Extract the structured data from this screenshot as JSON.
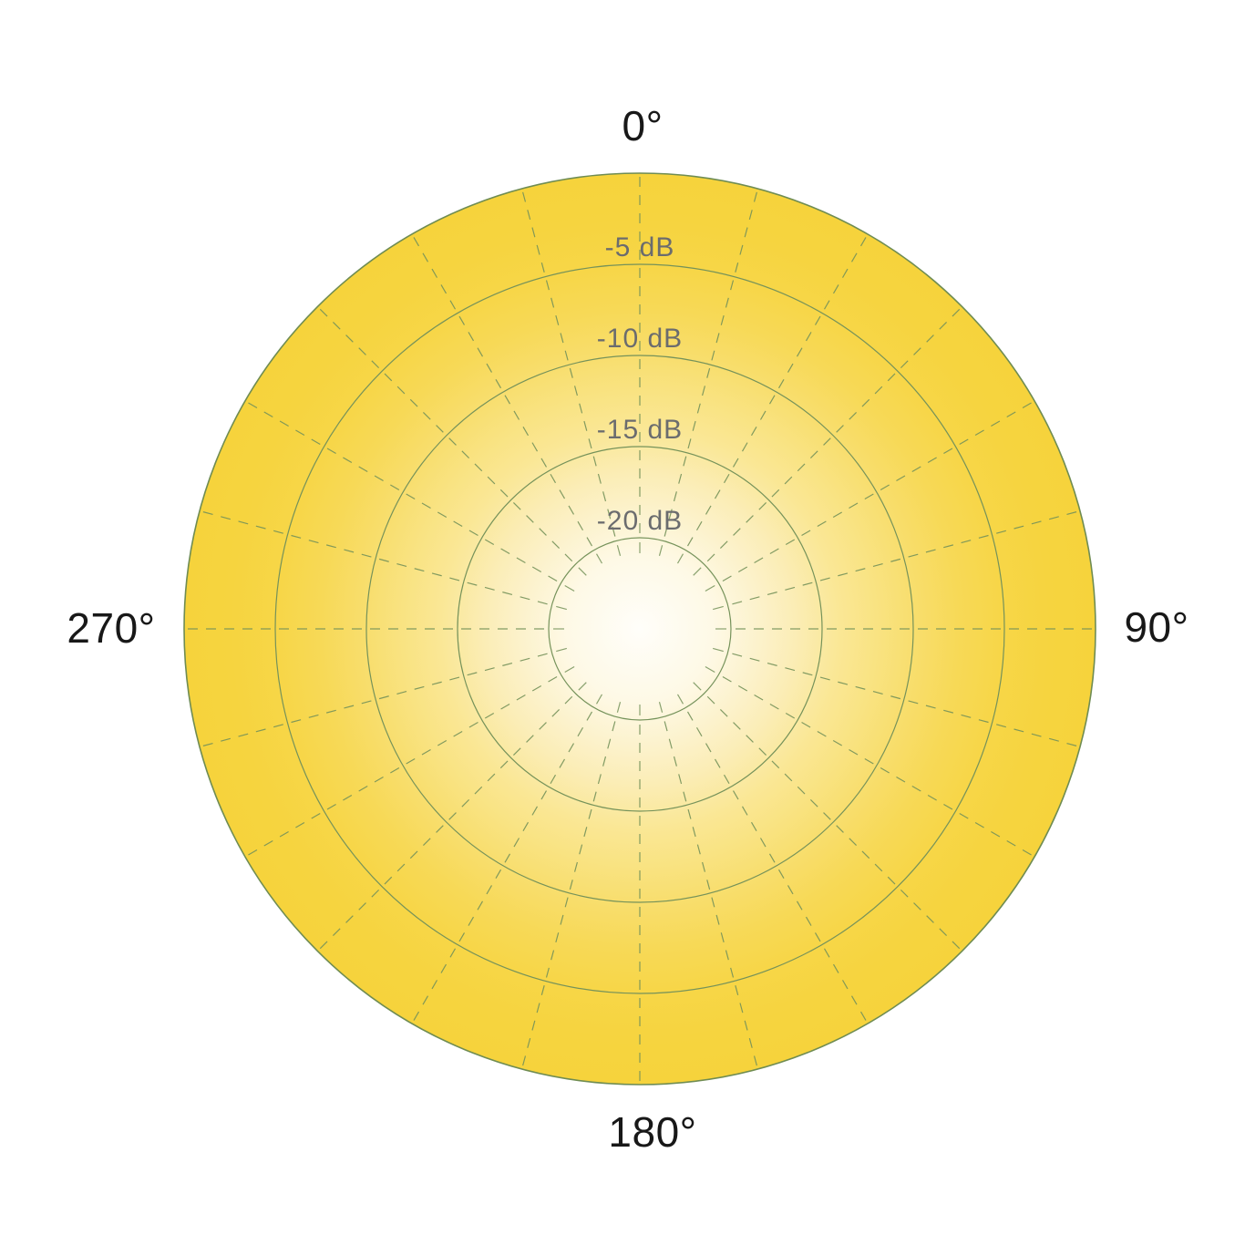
{
  "page": {
    "background": "#ffffff"
  },
  "chart_data": {
    "type": "polar",
    "subtype": "microphone-polar-pattern",
    "title": "",
    "pattern": {
      "name": "omnidirectional",
      "description": "uniform full-circle response filled to the outer radius at every angle"
    },
    "angle_unit": "degrees",
    "angle_step_deg": 15,
    "angle_labels": [
      {
        "angle_deg": 0,
        "text": "0°"
      },
      {
        "angle_deg": 90,
        "text": "90°"
      },
      {
        "angle_deg": 180,
        "text": "180°"
      },
      {
        "angle_deg": 270,
        "text": "270°"
      }
    ],
    "rings": [
      {
        "db": -5,
        "label": "-5 dB",
        "radius_fraction": 0.8
      },
      {
        "db": -10,
        "label": "-10 dB",
        "radius_fraction": 0.6
      },
      {
        "db": -15,
        "label": "-15 dB",
        "radius_fraction": 0.4
      },
      {
        "db": -20,
        "label": "-20 dB",
        "radius_fraction": 0.2
      }
    ],
    "grid": {
      "radial_dashed_lines": true,
      "inner_ticks_inside_smallest_ring": true
    },
    "fill": {
      "type": "radial-gradient",
      "stops": [
        {
          "offset": 0.0,
          "color": "#FFFEFA"
        },
        {
          "offset": 0.16,
          "color": "#FEF9E6"
        },
        {
          "offset": 0.26,
          "color": "#FCF2CC"
        },
        {
          "offset": 0.34,
          "color": "#FBEDB6"
        },
        {
          "offset": 0.44,
          "color": "#FAE795"
        },
        {
          "offset": 0.52,
          "color": "#F9E382"
        },
        {
          "offset": 0.6,
          "color": "#F8DE6E"
        },
        {
          "offset": 0.7,
          "color": "#F7D957"
        },
        {
          "offset": 0.8,
          "color": "#F7D647"
        },
        {
          "offset": 0.9,
          "color": "#F6D43F"
        },
        {
          "offset": 1.0,
          "color": "#F6D33C"
        }
      ]
    },
    "colors": {
      "grid_line": "#75925A",
      "outer_stroke": "#6F8C52",
      "ring_label": "#6B6C6E",
      "angle_label": "#181818"
    }
  }
}
